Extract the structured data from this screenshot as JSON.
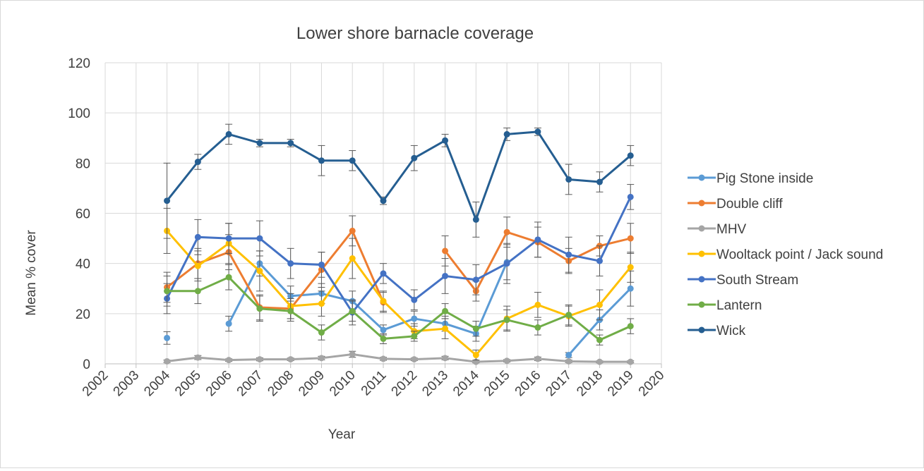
{
  "chart_data": {
    "type": "line",
    "title": "Lower shore barnacle coverage",
    "xlabel": "Year",
    "ylabel": "Mean % cover",
    "xlim": [
      2002,
      2020
    ],
    "ylim": [
      0,
      120
    ],
    "x_ticks": [
      "2002",
      "2003",
      "2004",
      "2005",
      "2006",
      "2007",
      "2008",
      "2009",
      "2010",
      "2011",
      "2012",
      "2013",
      "2014",
      "2015",
      "2016",
      "2017",
      "2018",
      "2019",
      "2020"
    ],
    "y_ticks": [
      "0",
      "20",
      "40",
      "60",
      "80",
      "100",
      "120"
    ],
    "grid": "vertical and horizontal",
    "legend_position": "right",
    "x": [
      2004,
      2005,
      2006,
      2007,
      2008,
      2009,
      2010,
      2011,
      2012,
      2013,
      2014,
      2015,
      2016,
      2017,
      2018,
      2019
    ],
    "series": [
      {
        "name": "Pig Stone inside",
        "color": "#5b9bd5",
        "values": [
          10.3,
          null,
          16,
          40,
          27,
          28,
          25,
          13.5,
          18,
          16,
          12,
          40.5,
          null,
          3.5,
          17.5,
          30
        ],
        "err": [
          2.5,
          null,
          3,
          5,
          4,
          4,
          4,
          2,
          3,
          3,
          3,
          7,
          null,
          1,
          4,
          7
        ]
      },
      {
        "name": "Double cliff",
        "color": "#ed7d31",
        "values": [
          30.5,
          40,
          44.5,
          22.5,
          22,
          37.5,
          53,
          24.5,
          null,
          45,
          29,
          52.5,
          48.5,
          41,
          47,
          50
        ],
        "err": [
          6,
          6,
          7,
          5,
          4,
          7,
          6,
          4,
          null,
          6,
          4,
          6,
          6,
          5,
          4,
          6
        ]
      },
      {
        "name": "MHV",
        "color": "#a5a5a5",
        "values": [
          1,
          2.5,
          1.5,
          1.8,
          1.8,
          2.3,
          3.8,
          2,
          1.8,
          2.3,
          0.8,
          1.2,
          2,
          1,
          0.8,
          0.8
        ],
        "err": [
          0.5,
          0.8,
          0.5,
          0.6,
          0.5,
          0.7,
          1.2,
          0.6,
          0.5,
          0.7,
          0.4,
          0.5,
          0.7,
          0.5,
          0.4,
          0.4
        ]
      },
      {
        "name": "Wooltack point / Jack sound",
        "color": "#ffc000",
        "values": [
          53,
          39,
          48,
          37,
          23,
          24,
          42,
          25,
          13,
          14,
          3.5,
          18,
          23.5,
          19,
          23.5,
          38.5
        ],
        "err": [
          9,
          6,
          8,
          8,
          5,
          5,
          8,
          4,
          3,
          4,
          2,
          5,
          5,
          4,
          6,
          6
        ]
      },
      {
        "name": "South Stream",
        "color": "#4472c4",
        "values": [
          26,
          50.5,
          50,
          50,
          40,
          39.5,
          20.5,
          36,
          25.5,
          35,
          33.5,
          40,
          49.5,
          43.5,
          41,
          66.5
        ],
        "err": [
          6,
          7,
          6,
          7,
          6,
          5,
          5,
          4,
          4,
          7,
          6,
          8,
          7,
          7,
          6,
          5
        ]
      },
      {
        "name": "Lantern",
        "color": "#70ad47",
        "values": [
          29,
          29,
          34.5,
          22,
          21,
          12.5,
          21,
          10,
          11,
          21,
          14,
          17.5,
          14.5,
          19.5,
          9.5,
          15
        ],
        "err": [
          6,
          5,
          5,
          5,
          4,
          3,
          4,
          2,
          2,
          3,
          3,
          4,
          3,
          4,
          2,
          3
        ]
      },
      {
        "name": "Wick",
        "color": "#255e91",
        "values": [
          65,
          80.5,
          91.5,
          88,
          88,
          81,
          81,
          65,
          82,
          89,
          57.5,
          91.5,
          92.5,
          73.5,
          72.5,
          83
        ],
        "err": [
          15,
          3,
          4,
          1.5,
          1.5,
          6,
          4,
          1.5,
          5,
          2.5,
          7,
          2.5,
          1.5,
          6,
          4,
          4
        ]
      }
    ]
  }
}
